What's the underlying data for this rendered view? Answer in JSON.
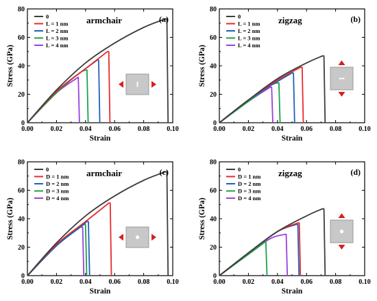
{
  "colors": {
    "series": [
      "#3c3c3c",
      "#e8292e",
      "#1f5fbf",
      "#1aa24a",
      "#9a3fe0"
    ],
    "inset_fill": "#c8c8c8",
    "inset_stroke": "#8a8a8a",
    "arrow": "#d62020",
    "hole": "#ffffff"
  },
  "chart_data": [
    {
      "type": "line",
      "panel": "(a)",
      "title": "armchair",
      "xlabel": "Strain",
      "ylabel": "Stress (GPa)",
      "xlim": [
        0,
        0.1
      ],
      "ylim": [
        0,
        80
      ],
      "xticks": [
        "0.00",
        "0.02",
        "0.04",
        "0.06",
        "0.08",
        "0.10"
      ],
      "yticks": [
        "0",
        "20",
        "40",
        "60",
        "80"
      ],
      "grid": false,
      "legend_position": "top-left",
      "inset": {
        "direction": "horizontal",
        "defect": "slit-vertical"
      },
      "series": [
        {
          "name": "0",
          "values": [
            [
              0,
              0
            ],
            [
              0.02,
              23
            ],
            [
              0.04,
              42
            ],
            [
              0.06,
              56
            ],
            [
              0.08,
              67
            ],
            [
              0.095,
              73
            ]
          ],
          "fracture_strain": 0.096
        },
        {
          "name": "L = 1 nm",
          "values": [
            [
              0,
              0
            ],
            [
              0.02,
              22
            ],
            [
              0.04,
              38
            ],
            [
              0.055,
              50
            ]
          ],
          "fracture_strain": 0.056
        },
        {
          "name": "L = 2 nm",
          "values": [
            [
              0,
              0
            ],
            [
              0.02,
              22
            ],
            [
              0.04,
              38
            ],
            [
              0.048,
              44
            ]
          ],
          "fracture_strain": 0.049
        },
        {
          "name": "L = 3 nm",
          "values": [
            [
              0,
              0
            ],
            [
              0.02,
              21
            ],
            [
              0.036,
              35
            ],
            [
              0.041,
              37
            ]
          ],
          "fracture_strain": 0.041
        },
        {
          "name": "L = 4 nm",
          "values": [
            [
              0,
              0
            ],
            [
              0.02,
              21
            ],
            [
              0.035,
              32
            ]
          ],
          "fracture_strain": 0.035
        }
      ]
    },
    {
      "type": "line",
      "panel": "(b)",
      "title": "zigzag",
      "xlabel": "Strain",
      "ylabel": "Stress (GPa)",
      "xlim": [
        0,
        0.1
      ],
      "ylim": [
        0,
        80
      ],
      "xticks": [
        "0.00",
        "0.02",
        "0.04",
        "0.06",
        "0.08",
        "0.10"
      ],
      "yticks": [
        "0",
        "20",
        "40",
        "60",
        "80"
      ],
      "grid": false,
      "legend_position": "top-left",
      "inset": {
        "direction": "vertical",
        "defect": "slit-horizontal"
      },
      "series": [
        {
          "name": "0",
          "values": [
            [
              0,
              0
            ],
            [
              0.02,
              16
            ],
            [
              0.04,
              31
            ],
            [
              0.06,
              42
            ],
            [
              0.071,
              47
            ]
          ],
          "fracture_strain": 0.072
        },
        {
          "name": "L = 1 nm",
          "values": [
            [
              0,
              0
            ],
            [
              0.02,
              16
            ],
            [
              0.04,
              30
            ],
            [
              0.056,
              39
            ]
          ],
          "fracture_strain": 0.057
        },
        {
          "name": "L = 2 nm",
          "values": [
            [
              0,
              0
            ],
            [
              0.02,
              16
            ],
            [
              0.04,
              29
            ],
            [
              0.05,
              35
            ]
          ],
          "fracture_strain": 0.051
        },
        {
          "name": "L = 3 nm",
          "values": [
            [
              0,
              0
            ],
            [
              0.02,
              15
            ],
            [
              0.035,
              26
            ],
            [
              0.04,
              28
            ]
          ],
          "fracture_strain": 0.041
        },
        {
          "name": "L = 4 nm",
          "values": [
            [
              0,
              0
            ],
            [
              0.02,
              15
            ],
            [
              0.035,
              25
            ]
          ],
          "fracture_strain": 0.036
        }
      ]
    },
    {
      "type": "line",
      "panel": "(c)",
      "title": "armchair",
      "xlabel": "Strain",
      "ylabel": "Stress (GPa)",
      "xlim": [
        0,
        0.1
      ],
      "ylim": [
        0,
        80
      ],
      "xticks": [
        "0.00",
        "0.02",
        "0.04",
        "0.06",
        "0.08",
        "0.10"
      ],
      "yticks": [
        "0",
        "20",
        "40",
        "60",
        "80"
      ],
      "grid": false,
      "legend_position": "top-left",
      "inset": {
        "direction": "horizontal",
        "defect": "circular-hole"
      },
      "series": [
        {
          "name": "0",
          "values": [
            [
              0,
              0
            ],
            [
              0.02,
              23
            ],
            [
              0.04,
              42
            ],
            [
              0.06,
              56
            ],
            [
              0.08,
              67
            ],
            [
              0.095,
              73
            ]
          ],
          "fracture_strain": 0.096
        },
        {
          "name": "D = 1 nm",
          "values": [
            [
              0,
              0
            ],
            [
              0.02,
              22
            ],
            [
              0.04,
              38
            ],
            [
              0.056,
              51
            ]
          ],
          "fracture_strain": 0.057
        },
        {
          "name": "D = 2 nm",
          "values": [
            [
              0,
              0
            ],
            [
              0.02,
              21
            ],
            [
              0.036,
              34
            ],
            [
              0.041,
              38
            ]
          ],
          "fracture_strain": 0.042
        },
        {
          "name": "D = 3 nm",
          "values": [
            [
              0,
              0
            ],
            [
              0.02,
              21
            ],
            [
              0.035,
              33
            ],
            [
              0.039,
              36
            ]
          ],
          "fracture_strain": 0.04
        },
        {
          "name": "D = 4 nm",
          "values": [
            [
              0,
              0
            ],
            [
              0.02,
              21
            ],
            [
              0.035,
              33
            ],
            [
              0.037,
              34
            ]
          ],
          "fracture_strain": 0.038
        }
      ]
    },
    {
      "type": "line",
      "panel": "(d)",
      "title": "zigzag",
      "xlabel": "Strain",
      "ylabel": "Stress (GPa)",
      "xlim": [
        0,
        0.1
      ],
      "ylim": [
        0,
        80
      ],
      "xticks": [
        "0.00",
        "0.02",
        "0.04",
        "0.06",
        "0.08",
        "0.10"
      ],
      "yticks": [
        "0",
        "20",
        "40",
        "60",
        "80"
      ],
      "grid": false,
      "legend_position": "top-left",
      "inset": {
        "direction": "vertical",
        "defect": "circular-hole"
      },
      "series": [
        {
          "name": "0",
          "values": [
            [
              0,
              0
            ],
            [
              0.02,
              16
            ],
            [
              0.04,
              31
            ],
            [
              0.06,
              42
            ],
            [
              0.071,
              47
            ]
          ],
          "fracture_strain": 0.072
        },
        {
          "name": "D = 1 nm",
          "values": [
            [
              0,
              0
            ],
            [
              0.02,
              16
            ],
            [
              0.04,
              31
            ],
            [
              0.054,
              37
            ]
          ],
          "fracture_strain": 0.055
        },
        {
          "name": "D = 2 nm",
          "values": [
            [
              0,
              0
            ],
            [
              0.02,
              16
            ],
            [
              0.04,
              31
            ],
            [
              0.053,
              36
            ]
          ],
          "fracture_strain": 0.054
        },
        {
          "name": "D = 3 nm",
          "values": [
            [
              0,
              0
            ],
            [
              0.02,
              15
            ],
            [
              0.032,
              24
            ]
          ],
          "fracture_strain": 0.032
        },
        {
          "name": "D = 4 nm",
          "values": [
            [
              0,
              0
            ],
            [
              0.02,
              15
            ],
            [
              0.035,
              26
            ],
            [
              0.045,
              29
            ]
          ],
          "fracture_strain": 0.046
        }
      ]
    }
  ]
}
